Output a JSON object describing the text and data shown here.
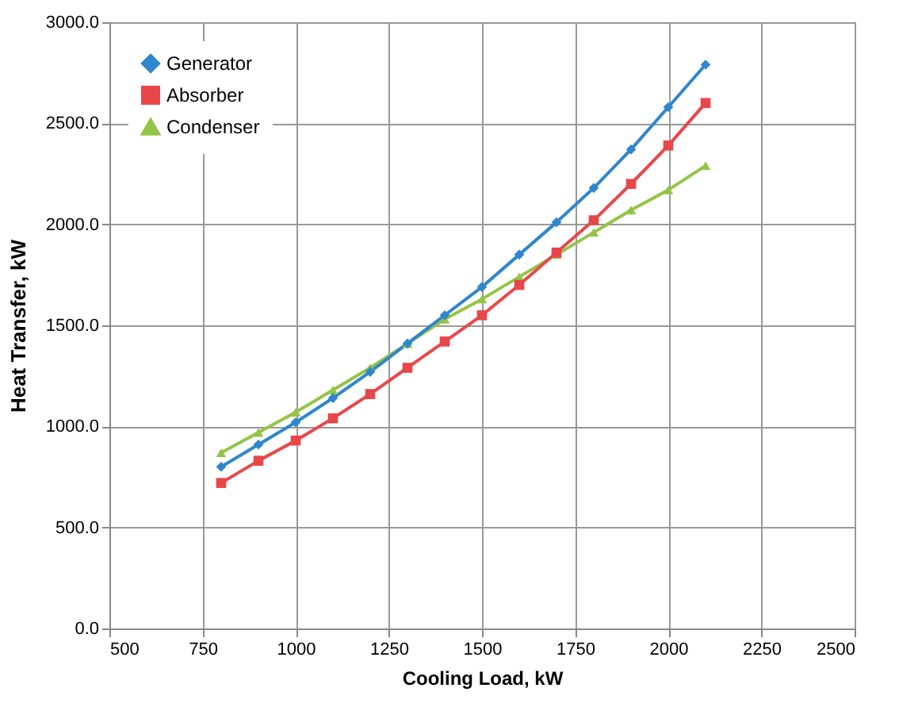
{
  "chart_data": {
    "type": "line",
    "xlabel": "Cooling Load, kW",
    "ylabel": "Heat Transfer, kW",
    "x": [
      800,
      900,
      1000,
      1100,
      1200,
      1300,
      1400,
      1500,
      1600,
      1700,
      1800,
      1900,
      2000,
      2100
    ],
    "series": [
      {
        "name": "Generator",
        "color": "#2f86cc",
        "marker": "diamond",
        "values": [
          800,
          910,
          1020,
          1140,
          1270,
          1410,
          1550,
          1690,
          1850,
          2010,
          2180,
          2370,
          2580,
          2790
        ]
      },
      {
        "name": "Absorber",
        "color": "#e8474a",
        "marker": "square",
        "values": [
          720,
          830,
          930,
          1040,
          1160,
          1290,
          1420,
          1550,
          1700,
          1860,
          2020,
          2200,
          2390,
          2600
        ]
      },
      {
        "name": "Condenser",
        "color": "#94c447",
        "marker": "triangle",
        "values": [
          870,
          970,
          1070,
          1180,
          1290,
          1410,
          1530,
          1630,
          1740,
          1850,
          1960,
          2070,
          2170,
          2290
        ]
      }
    ],
    "xlim": [
      500,
      2500
    ],
    "xticks": [
      500,
      750,
      1000,
      1250,
      1500,
      1750,
      2000,
      2250,
      2500
    ],
    "ylim": [
      0,
      3000
    ],
    "yticks": [
      {
        "value": 0,
        "label": "0.0"
      },
      {
        "value": 500,
        "label": "500.0"
      },
      {
        "value": 1000,
        "label": "1000.0"
      },
      {
        "value": 1500,
        "label": "1500.0"
      },
      {
        "value": 2000,
        "label": "2000.0"
      },
      {
        "value": 2500,
        "label": "2500.0"
      },
      {
        "value": 3000,
        "label": "3000.0"
      }
    ],
    "grid": true,
    "legend": "top left",
    "line_style": "solid"
  }
}
